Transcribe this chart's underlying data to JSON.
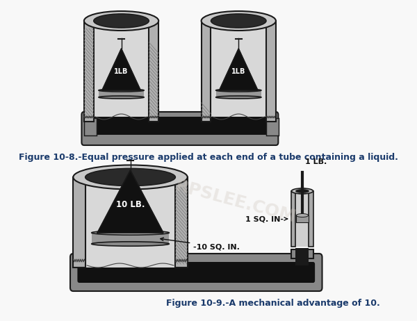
{
  "bg_color": "#f8f8f8",
  "caption1": "Figure 10-8.-Equal pressure applied at each end of a tube containing a liquid.",
  "caption2": "Figure 10-9.-A mechanical advantage of 10.",
  "caption_color": "#1a3a6b",
  "caption_fontsize": 9.0,
  "watermark": "RPSLEE.COM",
  "watermark_color": "#d0c8c0",
  "watermark_alpha": 0.35,
  "lc": "#1a1a1a",
  "wall_color": "#888888",
  "inner_dark": "#222222",
  "hatch_color": "#555555",
  "label_1lb": "1LB",
  "label_10lb": "10 LB.",
  "label_10sqin": "-10 SQ. IN.",
  "label_1sqin": "1 SQ. IN-",
  "label_1lb_top": "1 LB."
}
